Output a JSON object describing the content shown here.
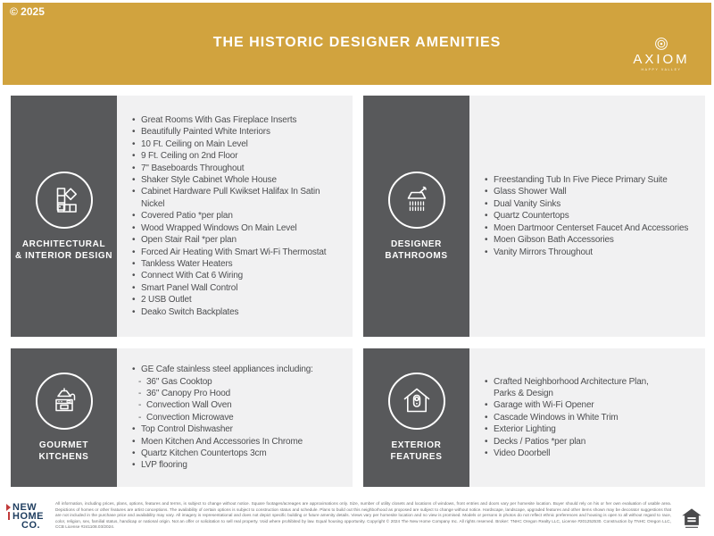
{
  "header": {
    "copyright": "© 2025",
    "title": "THE HISTORIC DESIGNER AMENITIES",
    "logo_name": "AXIOM",
    "logo_tagline": "HAPPY VALLEY"
  },
  "colors": {
    "gold": "#D1A33E",
    "panel_dark": "#58595B",
    "panel_light": "#F1F1F2",
    "body_text": "#4D4E50",
    "logo_navy": "#1E3D5F",
    "logo_red": "#C13A3A"
  },
  "sections": [
    {
      "label": "ARCHITECTURAL\n& INTERIOR DESIGN",
      "icon": "paint-swatches-icon",
      "items": [
        "Great Rooms With Gas Fireplace Inserts",
        "Beautifully Painted White Interiors",
        "10 Ft. Ceiling on Main Level",
        "9 Ft. Ceiling on 2nd Floor",
        "7\" Baseboards Throughout",
        "Shaker Style Cabinet Whole House",
        "Cabinet Hardware Pull Kwikset Halifax In Satin Nickel",
        "Covered Patio *per plan",
        "Wood Wrapped Windows On Main Level",
        "Open Stair Rail *per plan",
        "Forced Air Heating With Smart Wi-Fi Thermostat",
        "Tankless Water Heaters",
        "Connect With Cat 6 Wiring",
        "Smart Panel Wall Control",
        "2 USB Outlet",
        "Deako Switch Backplates"
      ]
    },
    {
      "label": "DESIGNER\nBATHROOMS",
      "icon": "shower-head-icon",
      "items": [
        "Freestanding Tub In Five Piece Primary Suite",
        "Glass Shower Wall",
        "Dual Vanity Sinks",
        "Quartz Countertops",
        "Moen Dartmoor Centerset Faucet And Accessories",
        "Moen Gibson Bath Accessories",
        "Vanity Mirrors Throughout"
      ]
    },
    {
      "label": "GOURMET\nKITCHENS",
      "icon": "kitchen-range-icon",
      "items": [
        "GE Cafe stainless steel appliances including:",
        {
          "t": "36\" Gas Cooktop",
          "sub": true
        },
        {
          "t": "36\" Canopy Pro Hood",
          "sub": true
        },
        {
          "t": "Convection Wall Oven",
          "sub": true
        },
        {
          "t": "Convection Microwave",
          "sub": true
        },
        "Top Control Dishwasher",
        "Moen Kitchen And Accessories In Chrome",
        "Quartz Kitchen Countertops 3cm",
        "LVP flooring"
      ]
    },
    {
      "label": "EXTERIOR FEATURES",
      "icon": "house-doorbell-icon",
      "items": [
        "Crafted Neighborhood Architecture Plan,\nParks & Design",
        "Garage with Wi-Fi Opener",
        "Cascade Windows in White Trim",
        "Exterior Lighting",
        "Decks / Patios *per plan",
        "Video Doorbell"
      ]
    }
  ],
  "footer": {
    "logo_line1": "NEW",
    "logo_line2": "HOME",
    "logo_line3": "CO.",
    "disclaimer": "All information, including prices, plans, options, features and terms, is subject to change without notice. Square footages/acreages are approximations only. Size, number of utility closets and locations of windows, front entries and doors vary per homesite location. Buyer should rely on his or her own evaluation of usable area. Depictions of homes or other features are artist conceptions. The availability of certain options is subject to construction status and schedule. Plans to build out this neighborhood as proposed are subject to change without notice. Hardscape, landscape, upgraded features and other items shown may be decorator suggestions that are not included in the purchase price and availability may vary. All imagery is representational and does not depict specific building or future amenity details. Views vary per homesite location and no view is promised. Models or persons in photos do not reflect ethnic preferences and housing is open to all without regard to race, color, religion, sex, familial status, handicap or national origin. Not an offer or solicitation to sell real property. Void where prohibited by law. Equal housing opportunity. Copyright © 2024 The New Home Company Inc. All rights reserved. Broker: TNHC Oregon Realty LLC, License #201252530. Construction by TNHC Oregon LLC, CCB License #241108.03/2024."
  }
}
